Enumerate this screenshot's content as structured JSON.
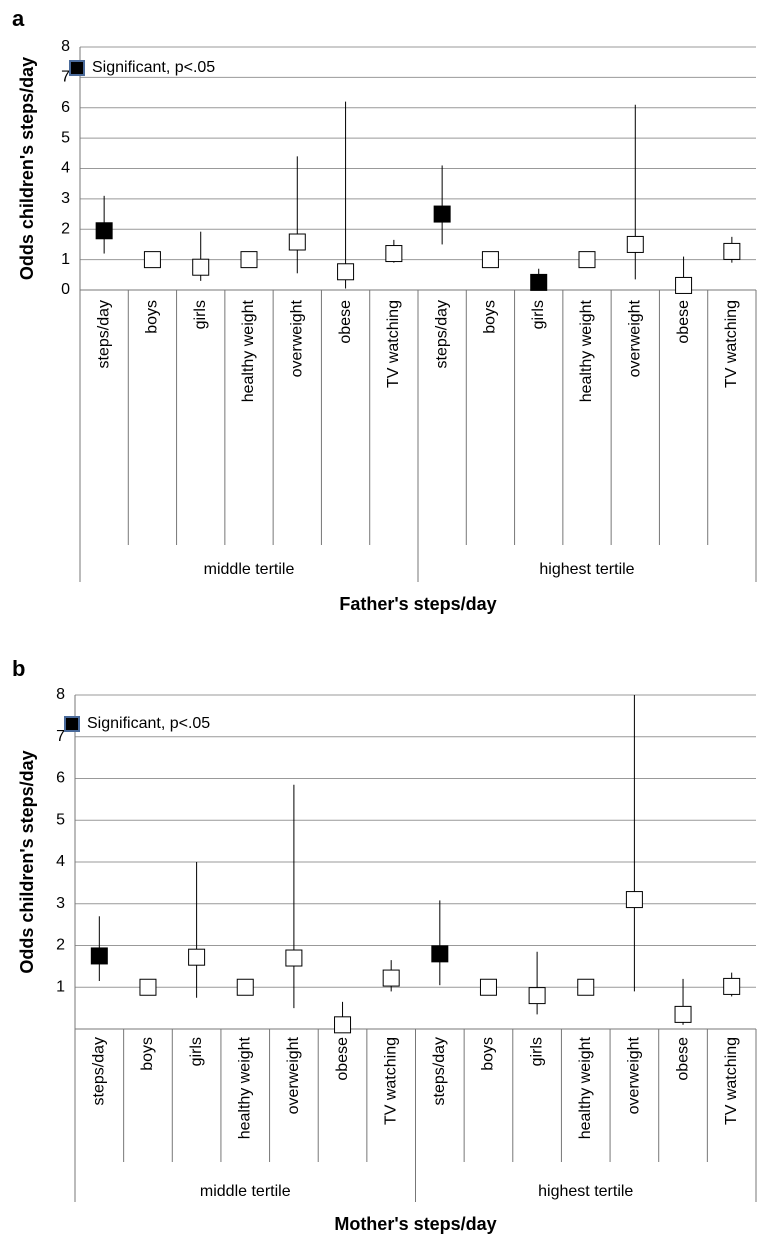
{
  "chart_data": [
    {
      "type": "point-range",
      "panel": "a",
      "ylabel": "Odds children's steps/day",
      "xlabel": "Father's steps/day",
      "groups": [
        {
          "name": "middle tertile",
          "categories": [
            "steps/day",
            "boys",
            "girls",
            "healthy weight",
            "overweight",
            "obese",
            "TV watching"
          ]
        },
        {
          "name": "highest tertile",
          "categories": [
            "steps/day",
            "boys",
            "girls",
            "healthy weight",
            "overweight",
            "obese",
            "TV watching"
          ]
        }
      ],
      "values": [
        1.95,
        1,
        0.75,
        1,
        1.58,
        0.6,
        1.2,
        2.5,
        1,
        0.25,
        1,
        1.5,
        0.15,
        1.27
      ],
      "lower": [
        1.2,
        null,
        0.3,
        null,
        0.55,
        0.05,
        0.9,
        1.5,
        null,
        0.1,
        null,
        0.35,
        0,
        0.9
      ],
      "upper": [
        3.1,
        null,
        1.92,
        null,
        4.4,
        6.2,
        1.65,
        4.1,
        null,
        0.7,
        null,
        6.1,
        1.1,
        1.75
      ],
      "significant": [
        true,
        false,
        false,
        false,
        false,
        false,
        false,
        true,
        false,
        true,
        false,
        false,
        false,
        false
      ],
      "color": "#000000",
      "open_color": "#ffffff",
      "legend": {
        "label": "Significant, p<.05",
        "color": "#000000"
      },
      "ylim": [
        0,
        8
      ],
      "yticks": [
        0,
        1,
        2,
        3,
        4,
        5,
        6,
        7,
        8
      ],
      "grid": true
    },
    {
      "type": "point-range",
      "panel": "b",
      "ylabel": "Odds children's steps/day",
      "xlabel": "Mother's steps/day",
      "groups": [
        {
          "name": "middle tertile",
          "categories": [
            "steps/day",
            "boys",
            "girls",
            "healthy weight",
            "overweight",
            "obese",
            "TV watching"
          ]
        },
        {
          "name": "highest tertile",
          "categories": [
            "steps/day",
            "boys",
            "girls",
            "healthy weight",
            "overweight",
            "obese",
            "TV watching"
          ]
        }
      ],
      "values": [
        1.75,
        1,
        1.72,
        1,
        1.7,
        0.1,
        1.22,
        1.8,
        1,
        0.8,
        1,
        3.1,
        0.35,
        1.02
      ],
      "lower": [
        1.15,
        null,
        0.75,
        null,
        0.5,
        0,
        0.9,
        1.05,
        null,
        0.35,
        null,
        0.9,
        0.1,
        0.78
      ],
      "upper": [
        2.7,
        null,
        4,
        null,
        5.85,
        0.65,
        1.65,
        3.08,
        null,
        1.85,
        null,
        8,
        1.2,
        1.35
      ],
      "significant": [
        true,
        false,
        false,
        false,
        false,
        false,
        false,
        true,
        false,
        false,
        false,
        false,
        false,
        false
      ],
      "color": "#000000",
      "open_color": "#ffffff",
      "legend": {
        "label": "Significant, p<.05",
        "color": "#000000"
      },
      "ylim": [
        0,
        8
      ],
      "yticks": [
        1,
        2,
        3,
        4,
        5,
        6,
        7,
        8
      ],
      "grid": true
    }
  ]
}
